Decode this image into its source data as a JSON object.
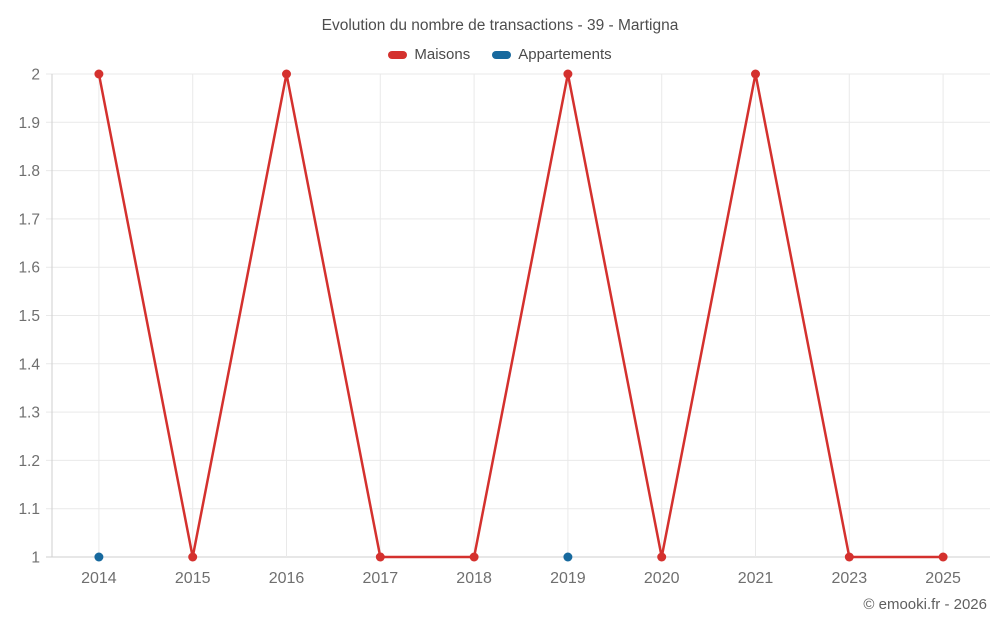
{
  "title": "Evolution du nombre de transactions - 39 - Martigna",
  "watermark": "© emooki.fr - 2026",
  "colors": {
    "maisons": "#d4312e",
    "appartements": "#17699e",
    "gridline": "#e9e9e9",
    "axis_line": "#cfcfcf",
    "tick_text": "#6f6f6f",
    "title_text": "#4d4d4d"
  },
  "legend": {
    "items": [
      {
        "label": "Maisons",
        "color": "#d4312e"
      },
      {
        "label": "Appartements",
        "color": "#17699e"
      }
    ]
  },
  "chart_data": {
    "type": "line",
    "title": "Evolution du nombre de transactions - 39 - Martigna",
    "categories": [
      "2014",
      "2015",
      "2016",
      "2017",
      "2018",
      "2019",
      "2020",
      "2021",
      "2023",
      "2025"
    ],
    "series": [
      {
        "name": "Maisons",
        "color": "#d4312e",
        "values": [
          2,
          1,
          2,
          1,
          1,
          2,
          1,
          2,
          1,
          1
        ]
      },
      {
        "name": "Appartements",
        "color": "#17699e",
        "values": [
          1,
          null,
          null,
          null,
          null,
          1,
          null,
          null,
          null,
          null
        ]
      }
    ],
    "xlabel": "",
    "ylabel": "",
    "ylim": [
      1,
      2
    ],
    "ytick_step": 0.1,
    "grid": true,
    "legend_position": "top"
  }
}
